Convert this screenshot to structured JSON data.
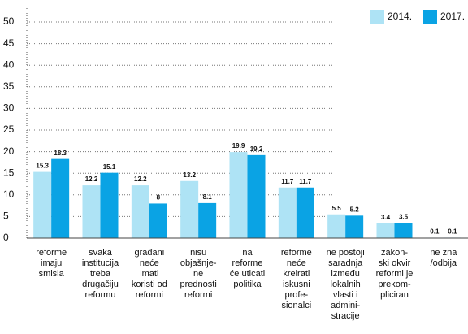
{
  "chart_data": {
    "type": "bar",
    "categories": [
      [
        "reforme",
        "imaju",
        "smisla"
      ],
      [
        "svaka",
        "institucija",
        "treba",
        "drugačiju",
        "reformu"
      ],
      [
        "građani",
        "neće",
        "imati",
        "koristi od",
        "reformi"
      ],
      [
        "nisu",
        "objašnje-",
        "ne",
        "prednosti",
        "reformi"
      ],
      [
        "na",
        "reforme",
        "će uticati",
        "politika"
      ],
      [
        "reforme",
        "neće",
        "kreirati",
        "iskusni",
        "profe-",
        "sionalci"
      ],
      [
        "ne postoji",
        "saradnja",
        "između",
        "lokalnih",
        "vlasti i",
        "admini-",
        "stracije"
      ],
      [
        "zakon-",
        "ski okvir",
        "reformi je",
        "prekom-",
        "pliciran"
      ],
      [
        "ne zna",
        "/odbija"
      ]
    ],
    "series": [
      {
        "name": "2014.",
        "color": "#aee3f5",
        "values": [
          15.3,
          12.2,
          12.2,
          13.2,
          19.9,
          11.7,
          5.5,
          3.4,
          0.1
        ]
      },
      {
        "name": "2017.",
        "color": "#0aa3e4",
        "values": [
          18.3,
          15.1,
          8,
          8.1,
          19.2,
          11.7,
          5.2,
          3.5,
          0.1
        ]
      }
    ],
    "ylim": [
      0,
      50
    ],
    "yticks": [
      0,
      5,
      10,
      15,
      20,
      25,
      30,
      35,
      40,
      45,
      50
    ],
    "grid": true,
    "legend": "top-right"
  }
}
